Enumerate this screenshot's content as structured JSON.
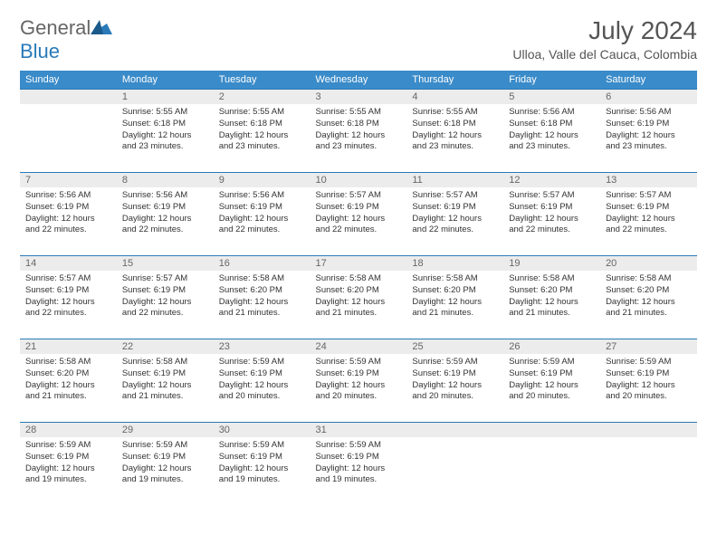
{
  "brand": {
    "part1": "General",
    "part2": "Blue"
  },
  "title": "July 2024",
  "location": "Ulloa, Valle del Cauca, Colombia",
  "colors": {
    "header_bg": "#3a8bc9",
    "rule": "#2a7ab8",
    "daynum_bg": "#ececec"
  },
  "weekdays": [
    "Sunday",
    "Monday",
    "Tuesday",
    "Wednesday",
    "Thursday",
    "Friday",
    "Saturday"
  ],
  "weeks": [
    [
      null,
      {
        "n": "1",
        "sr": "5:55 AM",
        "ss": "6:18 PM",
        "dl": "12 hours and 23 minutes."
      },
      {
        "n": "2",
        "sr": "5:55 AM",
        "ss": "6:18 PM",
        "dl": "12 hours and 23 minutes."
      },
      {
        "n": "3",
        "sr": "5:55 AM",
        "ss": "6:18 PM",
        "dl": "12 hours and 23 minutes."
      },
      {
        "n": "4",
        "sr": "5:55 AM",
        "ss": "6:18 PM",
        "dl": "12 hours and 23 minutes."
      },
      {
        "n": "5",
        "sr": "5:56 AM",
        "ss": "6:18 PM",
        "dl": "12 hours and 23 minutes."
      },
      {
        "n": "6",
        "sr": "5:56 AM",
        "ss": "6:19 PM",
        "dl": "12 hours and 23 minutes."
      }
    ],
    [
      {
        "n": "7",
        "sr": "5:56 AM",
        "ss": "6:19 PM",
        "dl": "12 hours and 22 minutes."
      },
      {
        "n": "8",
        "sr": "5:56 AM",
        "ss": "6:19 PM",
        "dl": "12 hours and 22 minutes."
      },
      {
        "n": "9",
        "sr": "5:56 AM",
        "ss": "6:19 PM",
        "dl": "12 hours and 22 minutes."
      },
      {
        "n": "10",
        "sr": "5:57 AM",
        "ss": "6:19 PM",
        "dl": "12 hours and 22 minutes."
      },
      {
        "n": "11",
        "sr": "5:57 AM",
        "ss": "6:19 PM",
        "dl": "12 hours and 22 minutes."
      },
      {
        "n": "12",
        "sr": "5:57 AM",
        "ss": "6:19 PM",
        "dl": "12 hours and 22 minutes."
      },
      {
        "n": "13",
        "sr": "5:57 AM",
        "ss": "6:19 PM",
        "dl": "12 hours and 22 minutes."
      }
    ],
    [
      {
        "n": "14",
        "sr": "5:57 AM",
        "ss": "6:19 PM",
        "dl": "12 hours and 22 minutes."
      },
      {
        "n": "15",
        "sr": "5:57 AM",
        "ss": "6:19 PM",
        "dl": "12 hours and 22 minutes."
      },
      {
        "n": "16",
        "sr": "5:58 AM",
        "ss": "6:20 PM",
        "dl": "12 hours and 21 minutes."
      },
      {
        "n": "17",
        "sr": "5:58 AM",
        "ss": "6:20 PM",
        "dl": "12 hours and 21 minutes."
      },
      {
        "n": "18",
        "sr": "5:58 AM",
        "ss": "6:20 PM",
        "dl": "12 hours and 21 minutes."
      },
      {
        "n": "19",
        "sr": "5:58 AM",
        "ss": "6:20 PM",
        "dl": "12 hours and 21 minutes."
      },
      {
        "n": "20",
        "sr": "5:58 AM",
        "ss": "6:20 PM",
        "dl": "12 hours and 21 minutes."
      }
    ],
    [
      {
        "n": "21",
        "sr": "5:58 AM",
        "ss": "6:20 PM",
        "dl": "12 hours and 21 minutes."
      },
      {
        "n": "22",
        "sr": "5:58 AM",
        "ss": "6:19 PM",
        "dl": "12 hours and 21 minutes."
      },
      {
        "n": "23",
        "sr": "5:59 AM",
        "ss": "6:19 PM",
        "dl": "12 hours and 20 minutes."
      },
      {
        "n": "24",
        "sr": "5:59 AM",
        "ss": "6:19 PM",
        "dl": "12 hours and 20 minutes."
      },
      {
        "n": "25",
        "sr": "5:59 AM",
        "ss": "6:19 PM",
        "dl": "12 hours and 20 minutes."
      },
      {
        "n": "26",
        "sr": "5:59 AM",
        "ss": "6:19 PM",
        "dl": "12 hours and 20 minutes."
      },
      {
        "n": "27",
        "sr": "5:59 AM",
        "ss": "6:19 PM",
        "dl": "12 hours and 20 minutes."
      }
    ],
    [
      {
        "n": "28",
        "sr": "5:59 AM",
        "ss": "6:19 PM",
        "dl": "12 hours and 19 minutes."
      },
      {
        "n": "29",
        "sr": "5:59 AM",
        "ss": "6:19 PM",
        "dl": "12 hours and 19 minutes."
      },
      {
        "n": "30",
        "sr": "5:59 AM",
        "ss": "6:19 PM",
        "dl": "12 hours and 19 minutes."
      },
      {
        "n": "31",
        "sr": "5:59 AM",
        "ss": "6:19 PM",
        "dl": "12 hours and 19 minutes."
      },
      null,
      null,
      null
    ]
  ],
  "labels": {
    "sunrise": "Sunrise:",
    "sunset": "Sunset:",
    "daylight": "Daylight:"
  }
}
